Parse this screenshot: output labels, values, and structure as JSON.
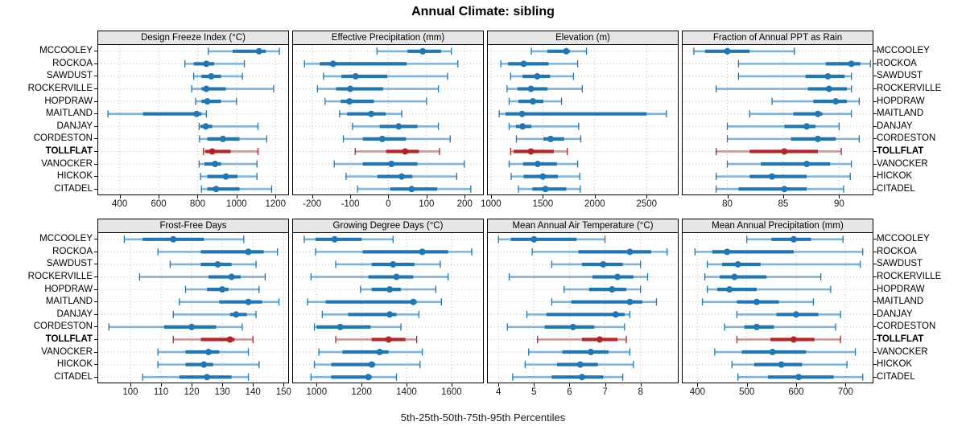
{
  "title": "Annual Climate: sibling",
  "caption": "5th-25th-50th-75th-95th Percentiles",
  "colors": {
    "blue": "#1f77b4",
    "blue_light": "#7fb3d9",
    "red": "#b22428",
    "red_light": "#dc9290",
    "strip_bg": "#e6e6e6",
    "grid": "#bdbdbd",
    "panel_border": "#000000"
  },
  "chart_data": {
    "type": "dotplot-percentile-trellis",
    "title": "Annual Climate: sibling",
    "caption": "5th-25th-50th-75th-95th Percentiles",
    "percentiles": [
      "5th",
      "25th",
      "50th",
      "75th",
      "95th"
    ],
    "grid": "dotted",
    "sites": [
      "MCCOOLEY",
      "ROCKOA",
      "SAWDUST",
      "ROCKERVILLE",
      "HOPDRAW",
      "MAITLAND",
      "DANJAY",
      "CORDESTON",
      "TOLLFLAT",
      "VANOCKER",
      "HICKOK",
      "CITADEL"
    ],
    "highlight_site": "TOLLFLAT",
    "panels": [
      {
        "title": "Design Freeze Index (°C)",
        "row": 0,
        "col": 0,
        "xlim": [
          290,
          1265
        ],
        "ticks": [
          400,
          600,
          800,
          1000,
          1200
        ],
        "values": [
          [
            855,
            980,
            1115,
            1150,
            1220
          ],
          [
            735,
            780,
            845,
            885,
            1040
          ],
          [
            780,
            820,
            870,
            920,
            1030
          ],
          [
            770,
            820,
            845,
            945,
            1190
          ],
          [
            790,
            820,
            850,
            920,
            1000
          ],
          [
            340,
            520,
            795,
            820,
            845
          ],
          [
            808,
            815,
            842,
            875,
            1110
          ],
          [
            810,
            850,
            930,
            1015,
            1155
          ],
          [
            830,
            840,
            875,
            970,
            1110
          ],
          [
            808,
            835,
            890,
            920,
            1105
          ],
          [
            815,
            850,
            945,
            1005,
            1105
          ],
          [
            820,
            850,
            895,
            1015,
            1180
          ]
        ]
      },
      {
        "title": "Effective Precipitation (mm)",
        "row": 0,
        "col": 1,
        "xlim": [
          -250,
          248
        ],
        "ticks": [
          -200,
          -100,
          0,
          100,
          200
        ],
        "values": [
          [
            -30,
            50,
            90,
            138,
            165
          ],
          [
            -220,
            -180,
            -145,
            48,
            182
          ],
          [
            -170,
            -123,
            -86,
            -3,
            155
          ],
          [
            -186,
            -137,
            -100,
            -14,
            131
          ],
          [
            -166,
            -125,
            -102,
            -38,
            100
          ],
          [
            -128,
            -108,
            -45,
            -7,
            35
          ],
          [
            -94,
            -23,
            27,
            76,
            131
          ],
          [
            -118,
            -67,
            -16,
            46,
            162
          ],
          [
            -87,
            -6,
            44,
            80,
            134
          ],
          [
            -142,
            -67,
            8,
            76,
            199
          ],
          [
            -111,
            -29,
            35,
            63,
            179
          ],
          [
            -81,
            5,
            61,
            128,
            216
          ]
        ]
      },
      {
        "title": "Elevation (m)",
        "row": 0,
        "col": 2,
        "xlim": [
          970,
          2800
        ],
        "ticks": [
          1000,
          1500,
          2000,
          2500
        ],
        "values": [
          [
            1390,
            1545,
            1725,
            1760,
            1920
          ],
          [
            1095,
            1165,
            1315,
            1555,
            1835
          ],
          [
            1190,
            1305,
            1445,
            1570,
            1795
          ],
          [
            1155,
            1255,
            1385,
            1545,
            1880
          ],
          [
            1175,
            1265,
            1405,
            1505,
            1680
          ],
          [
            1080,
            1140,
            1300,
            2500,
            2690
          ],
          [
            1175,
            1240,
            1305,
            1390,
            1845
          ],
          [
            1245,
            1505,
            1575,
            1705,
            1865
          ],
          [
            1190,
            1220,
            1385,
            1605,
            1735
          ],
          [
            1175,
            1310,
            1450,
            1635,
            1835
          ],
          [
            1195,
            1315,
            1500,
            1645,
            1855
          ],
          [
            1265,
            1400,
            1525,
            1725,
            1860
          ]
        ]
      },
      {
        "title": "Fraction of Annual PPT as Rain",
        "row": 0,
        "col": 3,
        "xlim": [
          76,
          93
        ],
        "ticks": [
          80,
          85,
          90
        ],
        "values": [
          [
            77,
            78,
            80,
            82,
            86
          ],
          [
            81,
            88.8,
            91.1,
            91.9,
            92.8
          ],
          [
            81,
            87,
            89,
            90.5,
            91.1
          ],
          [
            79,
            87.2,
            89.1,
            90.7,
            91.1
          ],
          [
            84,
            87.7,
            89.7,
            90.7,
            91.8
          ],
          [
            82,
            85.9,
            88.1,
            88.5,
            91.1
          ],
          [
            80,
            85.1,
            87.1,
            87.9,
            90
          ],
          [
            80,
            85.7,
            88.1,
            89.7,
            91.8
          ],
          [
            79,
            82,
            85.1,
            88.1,
            90.2
          ],
          [
            80,
            83,
            87.1,
            89.2,
            91.1
          ],
          [
            79,
            82,
            84,
            87.1,
            91
          ],
          [
            79,
            81,
            85.1,
            87.1,
            90.4
          ]
        ]
      },
      {
        "title": "Frost-Free Days",
        "row": 1,
        "col": 0,
        "xlim": [
          89.5,
          151.5
        ],
        "ticks": [
          100,
          110,
          120,
          130,
          140,
          150
        ],
        "values": [
          [
            98,
            104,
            114,
            124,
            137
          ],
          [
            109,
            123,
            138.5,
            143.5,
            148
          ],
          [
            113,
            123,
            128.5,
            133,
            141
          ],
          [
            103,
            125.5,
            133,
            136,
            144
          ],
          [
            118,
            125,
            130,
            132,
            142
          ],
          [
            116,
            129,
            138.5,
            143,
            148.5
          ],
          [
            114,
            132.5,
            134.5,
            138,
            141
          ],
          [
            93,
            111,
            120,
            128,
            136.5
          ],
          [
            114,
            123,
            132.5,
            134,
            140
          ],
          [
            109,
            118,
            125.5,
            129,
            138.5
          ],
          [
            109,
            118,
            124,
            127,
            142
          ],
          [
            104,
            116,
            125,
            133,
            138.5
          ]
        ]
      },
      {
        "title": "Growing Degree Days (°C)",
        "row": 1,
        "col": 1,
        "xlim": [
          895,
          1740
        ],
        "ticks": [
          1000,
          1200,
          1400,
          1600
        ],
        "values": [
          [
            945,
            995,
            1080,
            1200,
            1340
          ],
          [
            995,
            1205,
            1470,
            1585,
            1690
          ],
          [
            1085,
            1245,
            1340,
            1435,
            1550
          ],
          [
            975,
            1230,
            1355,
            1430,
            1585
          ],
          [
            1195,
            1245,
            1325,
            1375,
            1530
          ],
          [
            960,
            1040,
            1430,
            1445,
            1555
          ],
          [
            1025,
            1140,
            1325,
            1355,
            1455
          ],
          [
            990,
            1000,
            1105,
            1240,
            1375
          ],
          [
            1085,
            1245,
            1320,
            1395,
            1445
          ],
          [
            1010,
            1115,
            1280,
            1320,
            1470
          ],
          [
            990,
            1065,
            1245,
            1260,
            1460
          ],
          [
            975,
            1065,
            1230,
            1245,
            1355
          ]
        ]
      },
      {
        "title": "Mean Annual Air Temperature (°C)",
        "row": 1,
        "col": 2,
        "xlim": [
          3.7,
          9.05
        ],
        "ticks": [
          4,
          5,
          6,
          7,
          8
        ],
        "values": [
          [
            4.0,
            4.35,
            5.0,
            6.2,
            7.0
          ],
          [
            4.95,
            6.25,
            7.7,
            8.3,
            8.75
          ],
          [
            5.5,
            6.35,
            6.95,
            7.5,
            8.0
          ],
          [
            4.3,
            6.65,
            7.35,
            7.8,
            8.2
          ],
          [
            5.85,
            6.55,
            7.2,
            7.6,
            8.0
          ],
          [
            5.5,
            6.05,
            7.7,
            8.05,
            8.45
          ],
          [
            4.8,
            5.35,
            7.3,
            7.55,
            7.7
          ],
          [
            4.25,
            5.3,
            6.1,
            6.7,
            7.55
          ],
          [
            5.1,
            6.35,
            6.85,
            7.35,
            7.6
          ],
          [
            4.85,
            5.8,
            6.6,
            7.1,
            7.7
          ],
          [
            4.75,
            5.65,
            6.3,
            6.8,
            7.8
          ],
          [
            4.4,
            5.5,
            6.35,
            6.95,
            7.5
          ]
        ]
      },
      {
        "title": "Mean Annual Precipitation (mm)",
        "row": 1,
        "col": 3,
        "xlim": [
          370,
          755
        ],
        "ticks": [
          400,
          500,
          600,
          700
        ],
        "values": [
          [
            500,
            550,
            595,
            630,
            695
          ],
          [
            395,
            430,
            460,
            595,
            735
          ],
          [
            420,
            450,
            482,
            528,
            730
          ],
          [
            415,
            445,
            475,
            540,
            650
          ],
          [
            420,
            440,
            465,
            520,
            670
          ],
          [
            410,
            480,
            520,
            565,
            635
          ],
          [
            480,
            560,
            600,
            645,
            690
          ],
          [
            455,
            495,
            520,
            555,
            680
          ],
          [
            480,
            548,
            595,
            637,
            690
          ],
          [
            435,
            490,
            552,
            620,
            720
          ],
          [
            470,
            515,
            570,
            612,
            703
          ],
          [
            482,
            543,
            605,
            676,
            735
          ]
        ]
      }
    ]
  }
}
